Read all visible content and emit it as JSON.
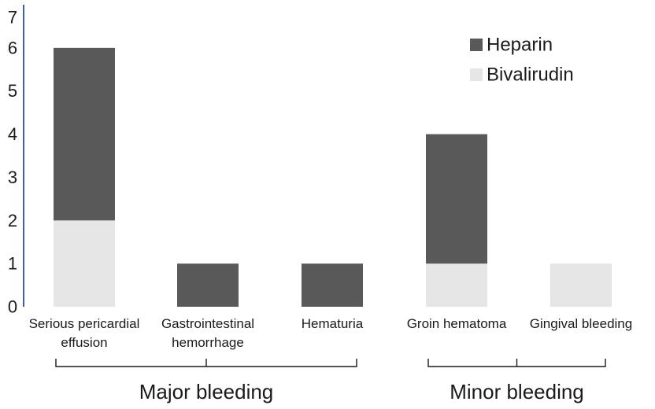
{
  "chart_data": {
    "type": "bar",
    "stacked": true,
    "categories": [
      [
        "Serious pericardial",
        "effusion"
      ],
      [
        "Gastrointestinal",
        "hemorrhage"
      ],
      [
        "Hematuria"
      ],
      [
        "Groin hematoma"
      ],
      [
        "Gingival bleeding"
      ]
    ],
    "series": [
      {
        "name": "Bivalirudin",
        "color": "#e6e6e6",
        "values": [
          2,
          0,
          0,
          1,
          1
        ]
      },
      {
        "name": "Heparin",
        "color": "#595959",
        "values": [
          4,
          1,
          1,
          3,
          0
        ]
      }
    ],
    "legend_order": [
      "Heparin",
      "Bivalirudin"
    ],
    "legend_position": "top-right",
    "ylim": [
      0,
      7
    ],
    "yticks": [
      0,
      1,
      2,
      3,
      4,
      5,
      6,
      7
    ],
    "groups": [
      {
        "label": "Major bleeding",
        "from": 0,
        "to": 2
      },
      {
        "label": "Minor bleeding",
        "from": 3,
        "to": 4
      }
    ],
    "axis_color": "#3b5fb5",
    "grid": false
  }
}
